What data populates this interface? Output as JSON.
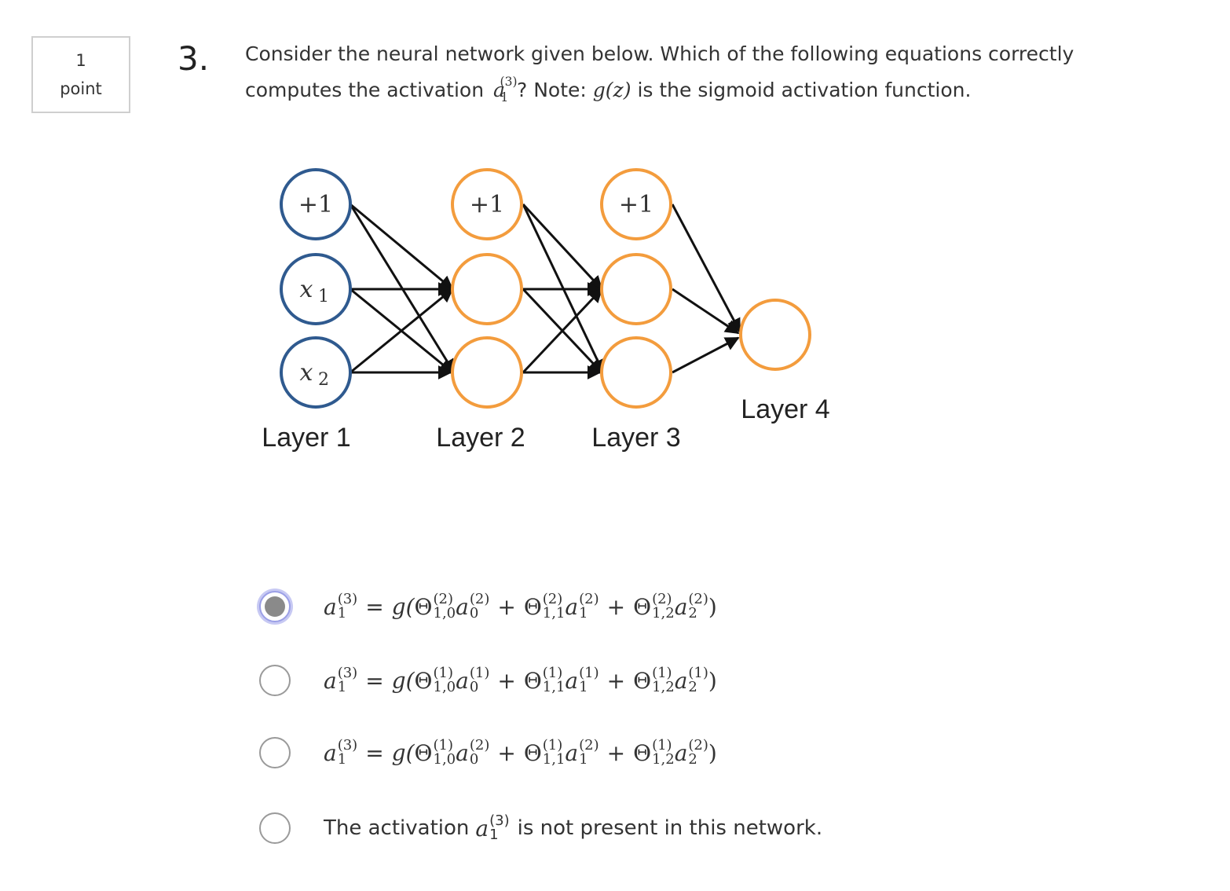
{
  "points": {
    "value": "1",
    "unit": "point"
  },
  "question": {
    "number": "3.",
    "text_part1": "Consider the neural network given below. Which of the following equations correctly computes the activation",
    "activation_base": "a",
    "activation_sup": "(3)",
    "activation_sub": "1",
    "text_part2": "? Note:",
    "g_z": "g(z)",
    "text_part3": "is the sigmoid activation function."
  },
  "network": {
    "layer_labels": [
      "Layer 1",
      "Layer 2",
      "Layer 3",
      "Layer 4"
    ],
    "bias_label": "+1",
    "input_labels": [
      "x",
      "x"
    ],
    "input_subs": [
      "1",
      "2"
    ],
    "colors": {
      "input_node": "#2f5a8f",
      "hidden_node": "#f39c3d",
      "edge": "#111111"
    }
  },
  "options": [
    {
      "selected": true,
      "lhs_base": "a",
      "lhs_sup": "(3)",
      "lhs_sub": "1",
      "equals": "=",
      "g_open": "g(",
      "close": ")",
      "terms": [
        {
          "theta": "Θ",
          "theta_sup": "(2)",
          "theta_sub": "1,0",
          "a": "a",
          "a_sup": "(2)",
          "a_sub": "0"
        },
        {
          "theta": "Θ",
          "theta_sup": "(2)",
          "theta_sub": "1,1",
          "a": "a",
          "a_sup": "(2)",
          "a_sub": "1"
        },
        {
          "theta": "Θ",
          "theta_sup": "(2)",
          "theta_sub": "1,2",
          "a": "a",
          "a_sup": "(2)",
          "a_sub": "2"
        }
      ],
      "plus": "+"
    },
    {
      "selected": false,
      "lhs_base": "a",
      "lhs_sup": "(3)",
      "lhs_sub": "1",
      "equals": "=",
      "g_open": "g(",
      "close": ")",
      "terms": [
        {
          "theta": "Θ",
          "theta_sup": "(1)",
          "theta_sub": "1,0",
          "a": "a",
          "a_sup": "(1)",
          "a_sub": "0"
        },
        {
          "theta": "Θ",
          "theta_sup": "(1)",
          "theta_sub": "1,1",
          "a": "a",
          "a_sup": "(1)",
          "a_sub": "1"
        },
        {
          "theta": "Θ",
          "theta_sup": "(1)",
          "theta_sub": "1,2",
          "a": "a",
          "a_sup": "(1)",
          "a_sub": "2"
        }
      ],
      "plus": "+"
    },
    {
      "selected": false,
      "lhs_base": "a",
      "lhs_sup": "(3)",
      "lhs_sub": "1",
      "equals": "=",
      "g_open": "g(",
      "close": ")",
      "terms": [
        {
          "theta": "Θ",
          "theta_sup": "(1)",
          "theta_sub": "1,0",
          "a": "a",
          "a_sup": "(2)",
          "a_sub": "0"
        },
        {
          "theta": "Θ",
          "theta_sup": "(1)",
          "theta_sub": "1,1",
          "a": "a",
          "a_sup": "(2)",
          "a_sub": "1"
        },
        {
          "theta": "Θ",
          "theta_sup": "(1)",
          "theta_sub": "1,2",
          "a": "a",
          "a_sup": "(2)",
          "a_sub": "2"
        }
      ],
      "plus": "+"
    }
  ],
  "option_text": {
    "selected": false,
    "before": "The activation",
    "a": "a",
    "a_sup": "(3)",
    "a_sub": "1",
    "after": "is not present in this network."
  }
}
